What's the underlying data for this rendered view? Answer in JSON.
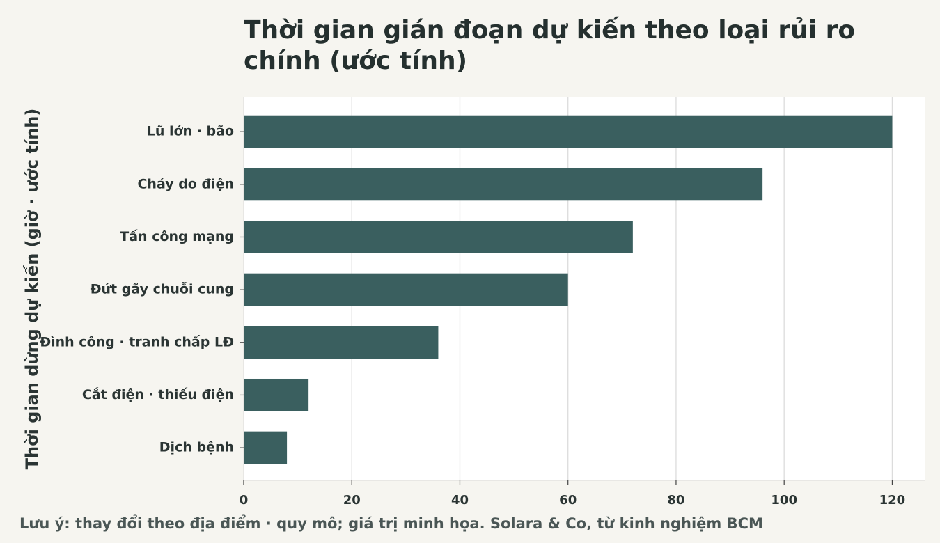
{
  "chart_data": {
    "type": "bar",
    "orientation": "horizontal",
    "title": "Thời gian gián đoạn dự kiến theo loại rủi ro chính (ước tính)",
    "ylabel": "Thời gian dừng dự kiến (giờ · ước tính)",
    "categories": [
      "Lũ lớn · bão",
      "Cháy do điện",
      "Tấn công mạng",
      "Đứt gãy chuỗi cung",
      "Đình công · tranh chấp LĐ",
      "Cắt điện · thiếu điện",
      "Dịch bệnh"
    ],
    "values": [
      120,
      96,
      72,
      60,
      36,
      12,
      8
    ],
    "xlim": [
      0,
      126
    ],
    "xticks": [
      0,
      20,
      40,
      60,
      80,
      100,
      120
    ],
    "grid": true,
    "bar_color": "#3a5f5f",
    "note": "Lưu ý: thay đổi theo địa điểm · quy mô; giá trị minh họa. Solara & Co, từ kinh nghiệm BCM"
  }
}
